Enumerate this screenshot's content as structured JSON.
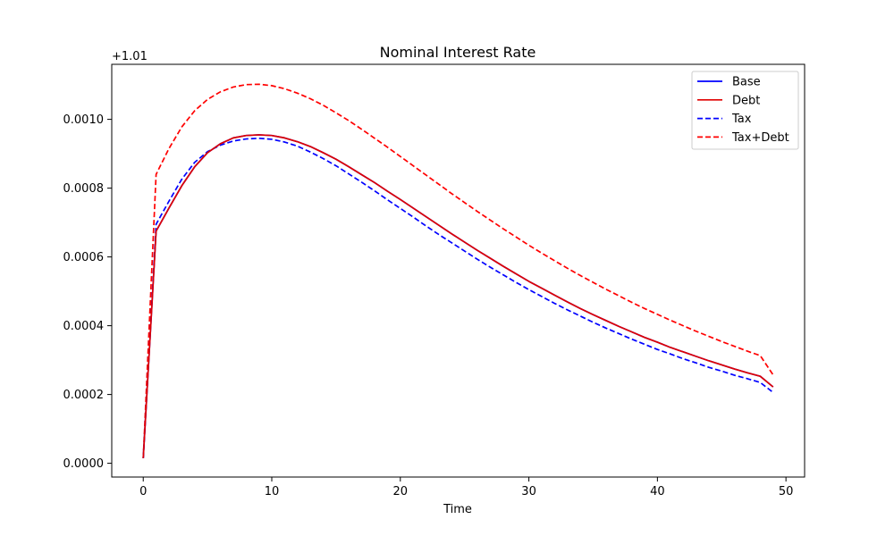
{
  "chart_data": {
    "type": "line",
    "title": "Nominal Interest Rate",
    "xlabel": "Time",
    "ylabel": "",
    "offset_label": "+1.01",
    "xlim": [
      -2.45,
      51.45
    ],
    "ylim": [
      -4e-05,
      0.00116
    ],
    "xticks": [
      0,
      10,
      20,
      30,
      40,
      50
    ],
    "xtick_labels": [
      "0",
      "10",
      "20",
      "30",
      "40",
      "50"
    ],
    "yticks": [
      0.0,
      0.0002,
      0.0004,
      0.0006,
      0.0008,
      0.001
    ],
    "ytick_labels": [
      "0.0000",
      "0.0002",
      "0.0004",
      "0.0006",
      "0.0008",
      "0.0010"
    ],
    "grid": false,
    "legend_position": "top-right",
    "x": [
      0,
      1,
      2,
      3,
      4,
      5,
      6,
      7,
      8,
      9,
      10,
      11,
      12,
      13,
      14,
      15,
      16,
      17,
      18,
      19,
      20,
      21,
      22,
      23,
      24,
      25,
      26,
      27,
      28,
      29,
      30,
      31,
      32,
      33,
      34,
      35,
      36,
      37,
      38,
      39,
      40,
      41,
      42,
      43,
      44,
      45,
      46,
      47,
      48,
      49
    ],
    "series": [
      {
        "name": "Base",
        "color": "#0000ff",
        "dash": "solid",
        "values": [
          1.5e-05,
          0.000675,
          0.000742,
          0.000807,
          0.000862,
          0.000903,
          0.000929,
          0.000946,
          0.000953,
          0.000955,
          0.000953,
          0.000946,
          0.000935,
          0.000921,
          0.000903,
          0.000884,
          0.000862,
          0.000839,
          0.000816,
          0.000791,
          0.000767,
          0.000742,
          0.000717,
          0.000692,
          0.000667,
          0.000643,
          0.000619,
          0.000596,
          0.000573,
          0.000551,
          0.000529,
          0.000509,
          0.000489,
          0.000469,
          0.00045,
          0.000432,
          0.000415,
          0.000398,
          0.000382,
          0.000366,
          0.000352,
          0.000337,
          0.000324,
          0.000311,
          0.000298,
          0.000286,
          0.000274,
          0.000263,
          0.000253,
          0.000222
        ]
      },
      {
        "name": "Debt",
        "color": "#e00000",
        "dash": "solid",
        "values": [
          1.5e-05,
          0.000675,
          0.000742,
          0.000807,
          0.000862,
          0.000903,
          0.000929,
          0.000946,
          0.000953,
          0.000955,
          0.000953,
          0.000946,
          0.000935,
          0.000921,
          0.000903,
          0.000884,
          0.000862,
          0.000839,
          0.000816,
          0.000791,
          0.000767,
          0.000742,
          0.000717,
          0.000692,
          0.000667,
          0.000643,
          0.000619,
          0.000596,
          0.000573,
          0.000551,
          0.000529,
          0.000509,
          0.000489,
          0.000469,
          0.00045,
          0.000432,
          0.000415,
          0.000398,
          0.000382,
          0.000366,
          0.000352,
          0.000337,
          0.000324,
          0.000311,
          0.000298,
          0.000286,
          0.000274,
          0.000263,
          0.000253,
          0.000222
        ]
      },
      {
        "name": "Tax",
        "color": "#0000ff",
        "dash": "dashed",
        "values": [
          1.5e-05,
          0.000695,
          0.000762,
          0.000826,
          0.000875,
          0.000906,
          0.000925,
          0.000937,
          0.000943,
          0.000945,
          0.000942,
          0.000934,
          0.000922,
          0.000905,
          0.000886,
          0.000865,
          0.000841,
          0.000817,
          0.000792,
          0.000766,
          0.000741,
          0.000716,
          0.00069,
          0.000665,
          0.000641,
          0.000617,
          0.000593,
          0.00057,
          0.000548,
          0.000526,
          0.000505,
          0.000485,
          0.000465,
          0.000446,
          0.000428,
          0.00041,
          0.000393,
          0.000377,
          0.000361,
          0.000346,
          0.000331,
          0.000318,
          0.000304,
          0.000292,
          0.000279,
          0.000268,
          0.000256,
          0.000246,
          0.000235,
          0.000206
        ]
      },
      {
        "name": "Tax+Debt",
        "color": "#ff0000",
        "dash": "dashed",
        "values": [
          1.5e-05,
          0.00084,
          0.000915,
          0.000978,
          0.001025,
          0.001058,
          0.00108,
          0.001094,
          0.001101,
          0.001102,
          0.001098,
          0.001089,
          0.001076,
          0.00106,
          0.001041,
          0.001019,
          0.000996,
          0.000971,
          0.000945,
          0.000919,
          0.000892,
          0.000865,
          0.000838,
          0.000811,
          0.000784,
          0.000758,
          0.000732,
          0.000707,
          0.000682,
          0.000658,
          0.000634,
          0.000611,
          0.000589,
          0.000567,
          0.000546,
          0.000526,
          0.000506,
          0.000487,
          0.000468,
          0.00045,
          0.000433,
          0.000416,
          0.0004,
          0.000384,
          0.000369,
          0.000354,
          0.00034,
          0.000326,
          0.000313,
          0.000257
        ]
      }
    ]
  }
}
